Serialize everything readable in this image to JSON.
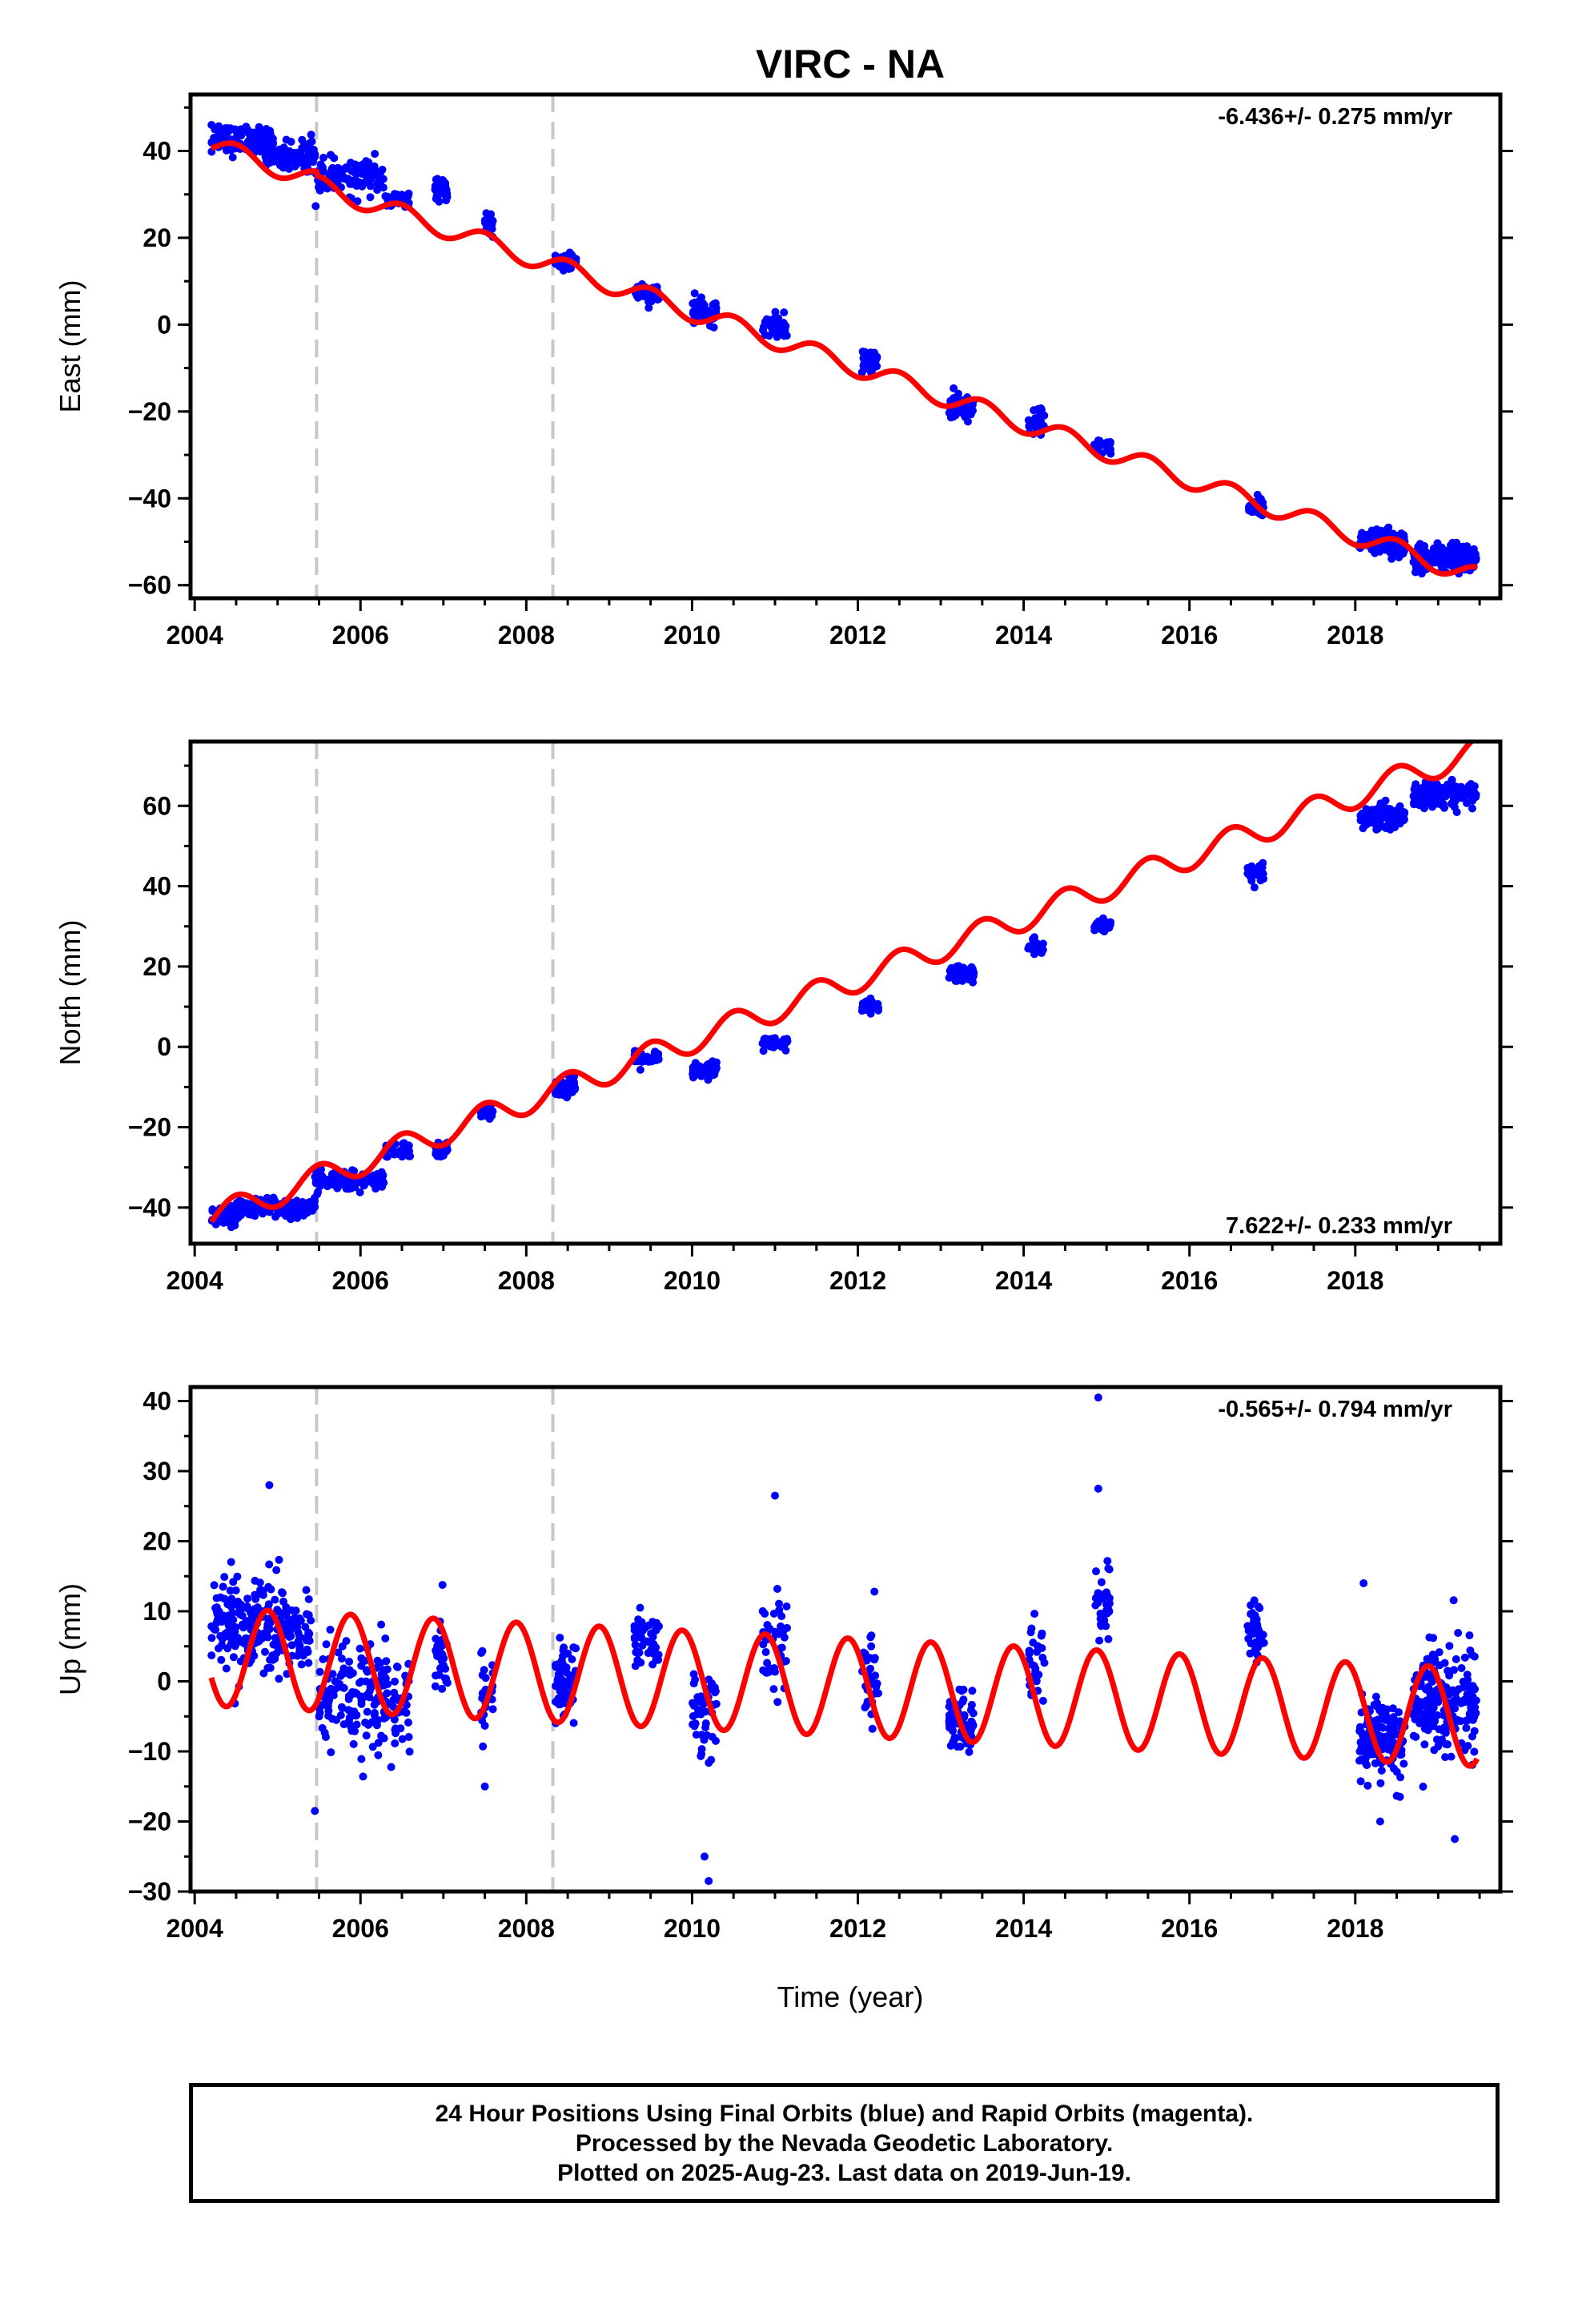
{
  "title": "VIRC - NA",
  "xlabel": "Time (year)",
  "footer": {
    "line1": "24 Hour Positions Using Final Orbits (blue) and Rapid Orbits (magenta).",
    "line2": "Processed by the Nevada Geodetic Laboratory.",
    "line3": "Plotted on 2025-Aug-23. Last data on 2019-Jun-19."
  },
  "colors": {
    "data": "#0000ff",
    "model": "#ff0000",
    "steps": "#c8c8c8"
  },
  "chart_data": [
    {
      "type": "scatter",
      "component": "east",
      "ylabel": "East (mm)",
      "rate_label": "-6.436+/- 0.275 mm/yr",
      "rate_position": "top-right",
      "xlim": [
        2003.95,
        2019.75
      ],
      "ylim": [
        -63,
        53
      ],
      "yticks": [
        -60,
        -40,
        -20,
        0,
        20,
        40
      ],
      "xticks": [
        2004,
        2006,
        2008,
        2010,
        2012,
        2014,
        2016,
        2018
      ],
      "step_lines": [
        2005.47,
        2008.32
      ],
      "model": {
        "rate": -6.436,
        "intercept": 41.3,
        "t0": 2004.2,
        "annual_amp": 2.2,
        "annual_peak": 0.5,
        "offsets": [
          {
            "t": 2005.47,
            "dy": -1.0
          }
        ]
      },
      "clusters": [
        {
          "start": 2004.2,
          "end": 2004.95,
          "n": 120,
          "center": 42.5,
          "spread": 3.0
        },
        {
          "start": 2004.85,
          "end": 2005.45,
          "n": 100,
          "center": 39.0,
          "spread": 3.0
        },
        {
          "start": 2005.45,
          "end": 2006.3,
          "n": 120,
          "center": 34.0,
          "spread": 3.5
        },
        {
          "start": 2006.3,
          "end": 2006.6,
          "n": 40,
          "center": 28.5,
          "spread": 2.0
        },
        {
          "start": 2006.9,
          "end": 2007.05,
          "n": 35,
          "center": 31.0,
          "spread": 2.0
        },
        {
          "start": 2007.5,
          "end": 2007.6,
          "n": 25,
          "center": 23.0,
          "spread": 2.0
        },
        {
          "start": 2008.35,
          "end": 2008.6,
          "n": 60,
          "center": 14.5,
          "spread": 2.0
        },
        {
          "start": 2009.3,
          "end": 2009.6,
          "n": 45,
          "center": 7.0,
          "spread": 2.0
        },
        {
          "start": 2010.0,
          "end": 2010.3,
          "n": 50,
          "center": 3.0,
          "spread": 2.5
        },
        {
          "start": 2010.85,
          "end": 2011.15,
          "n": 45,
          "center": -0.5,
          "spread": 2.5
        },
        {
          "start": 2012.05,
          "end": 2012.25,
          "n": 35,
          "center": -8.5,
          "spread": 2.5
        },
        {
          "start": 2013.1,
          "end": 2013.4,
          "n": 70,
          "center": -19.0,
          "spread": 2.5
        },
        {
          "start": 2014.05,
          "end": 2014.25,
          "n": 30,
          "center": -22.5,
          "spread": 2.5
        },
        {
          "start": 2014.85,
          "end": 2015.05,
          "n": 35,
          "center": -28.0,
          "spread": 1.5
        },
        {
          "start": 2016.7,
          "end": 2016.9,
          "n": 40,
          "center": -42.0,
          "spread": 2.0
        },
        {
          "start": 2018.05,
          "end": 2018.6,
          "n": 150,
          "center": -50.0,
          "spread": 2.5
        },
        {
          "start": 2018.7,
          "end": 2019.46,
          "n": 200,
          "center": -54.0,
          "spread": 3.0
        }
      ]
    },
    {
      "type": "scatter",
      "component": "north",
      "ylabel": "North (mm)",
      "rate_label": "7.622+/- 0.233 mm/yr",
      "rate_position": "bottom-right",
      "xlim": [
        2003.95,
        2019.75
      ],
      "ylim": [
        -49,
        76
      ],
      "yticks": [
        -40,
        -20,
        0,
        20,
        40,
        60
      ],
      "xticks": [
        2004,
        2006,
        2008,
        2010,
        2012,
        2014,
        2016,
        2018
      ],
      "step_lines": [
        2005.47,
        2008.32
      ],
      "model": {
        "rate": 7.622,
        "intercept": -42.5,
        "t0": 2004.2,
        "annual_amp": 3.3,
        "annual_peak": 0.5,
        "offsets": []
      },
      "clusters": [
        {
          "start": 2004.2,
          "end": 2004.5,
          "n": 50,
          "center": -42.0,
          "spread": 2.0
        },
        {
          "start": 2004.5,
          "end": 2005.45,
          "n": 150,
          "center": -40.0,
          "spread": 2.0
        },
        {
          "start": 2005.45,
          "end": 2006.3,
          "n": 120,
          "center": -33.0,
          "spread": 2.0
        },
        {
          "start": 2006.3,
          "end": 2006.6,
          "n": 40,
          "center": -26.0,
          "spread": 2.0
        },
        {
          "start": 2006.9,
          "end": 2007.05,
          "n": 35,
          "center": -26.0,
          "spread": 2.0
        },
        {
          "start": 2007.45,
          "end": 2007.6,
          "n": 25,
          "center": -16.0,
          "spread": 1.5
        },
        {
          "start": 2008.35,
          "end": 2008.6,
          "n": 60,
          "center": -10.0,
          "spread": 2.0
        },
        {
          "start": 2009.3,
          "end": 2009.6,
          "n": 45,
          "center": -3.0,
          "spread": 2.0
        },
        {
          "start": 2010.0,
          "end": 2010.3,
          "n": 50,
          "center": -6.0,
          "spread": 2.0
        },
        {
          "start": 2010.85,
          "end": 2011.15,
          "n": 45,
          "center": 1.0,
          "spread": 1.5
        },
        {
          "start": 2012.05,
          "end": 2012.25,
          "n": 35,
          "center": 10.0,
          "spread": 1.5
        },
        {
          "start": 2013.1,
          "end": 2013.4,
          "n": 70,
          "center": 18.0,
          "spread": 2.0
        },
        {
          "start": 2014.05,
          "end": 2014.25,
          "n": 30,
          "center": 25.0,
          "spread": 2.0
        },
        {
          "start": 2014.85,
          "end": 2015.05,
          "n": 35,
          "center": 30.0,
          "spread": 1.5
        },
        {
          "start": 2016.7,
          "end": 2016.9,
          "n": 40,
          "center": 43.0,
          "spread": 2.0
        },
        {
          "start": 2018.05,
          "end": 2018.6,
          "n": 150,
          "center": 57.0,
          "spread": 2.5
        },
        {
          "start": 2018.7,
          "end": 2019.46,
          "n": 200,
          "center": 63.0,
          "spread": 2.5
        }
      ]
    },
    {
      "type": "scatter",
      "component": "up",
      "ylabel": "Up (mm)",
      "rate_label": "-0.565+/- 0.794 mm/yr",
      "rate_position": "top-right",
      "xlim": [
        2003.95,
        2019.75
      ],
      "ylim": [
        -30,
        42
      ],
      "yticks": [
        -30,
        -20,
        -10,
        0,
        10,
        20,
        30,
        40
      ],
      "xticks": [
        2004,
        2006,
        2008,
        2010,
        2012,
        2014,
        2016,
        2018
      ],
      "step_lines": [
        2005.47,
        2008.32
      ],
      "model": {
        "rate": -0.565,
        "intercept": 3.5,
        "t0": 2004.2,
        "annual_amp": 7.0,
        "annual_peak": 0.88,
        "offsets": []
      },
      "clusters": [
        {
          "start": 2004.2,
          "end": 2005.4,
          "n": 250,
          "center": 8.0,
          "spread": 6.0
        },
        {
          "start": 2005.5,
          "end": 2006.3,
          "n": 140,
          "center": -2.0,
          "spread": 7.0
        },
        {
          "start": 2006.3,
          "end": 2006.6,
          "n": 40,
          "center": -3.0,
          "spread": 6.0
        },
        {
          "start": 2006.9,
          "end": 2007.05,
          "n": 35,
          "center": 2.0,
          "spread": 6.0
        },
        {
          "start": 2007.45,
          "end": 2007.6,
          "n": 25,
          "center": -1.0,
          "spread": 6.0
        },
        {
          "start": 2008.35,
          "end": 2008.6,
          "n": 60,
          "center": 0.0,
          "spread": 5.0
        },
        {
          "start": 2009.3,
          "end": 2009.6,
          "n": 45,
          "center": 6.0,
          "spread": 4.0
        },
        {
          "start": 2010.0,
          "end": 2010.3,
          "n": 50,
          "center": -4.0,
          "spread": 6.0
        },
        {
          "start": 2010.85,
          "end": 2011.15,
          "n": 45,
          "center": 5.0,
          "spread": 6.0
        },
        {
          "start": 2012.05,
          "end": 2012.25,
          "n": 35,
          "center": 0.0,
          "spread": 5.0
        },
        {
          "start": 2013.1,
          "end": 2013.4,
          "n": 70,
          "center": -6.0,
          "spread": 4.0
        },
        {
          "start": 2014.05,
          "end": 2014.25,
          "n": 30,
          "center": 2.0,
          "spread": 6.0
        },
        {
          "start": 2014.85,
          "end": 2015.05,
          "n": 35,
          "center": 11.0,
          "spread": 5.0
        },
        {
          "start": 2016.7,
          "end": 2016.9,
          "n": 40,
          "center": 7.0,
          "spread": 4.0
        },
        {
          "start": 2018.05,
          "end": 2018.6,
          "n": 150,
          "center": -8.0,
          "spread": 5.0
        },
        {
          "start": 2018.7,
          "end": 2019.46,
          "n": 200,
          "center": -3.0,
          "spread": 7.0
        }
      ],
      "outliers": [
        [
          2004.9,
          28.0
        ],
        [
          2005.45,
          -18.5
        ],
        [
          2007.5,
          -15.0
        ],
        [
          2010.15,
          -25.0
        ],
        [
          2010.2,
          -28.5
        ],
        [
          2011.0,
          26.5
        ],
        [
          2014.9,
          40.5
        ],
        [
          2014.9,
          27.5
        ],
        [
          2012.2,
          12.8
        ],
        [
          2018.1,
          14.0
        ],
        [
          2019.2,
          -22.5
        ],
        [
          2018.3,
          -20.0
        ]
      ]
    }
  ]
}
